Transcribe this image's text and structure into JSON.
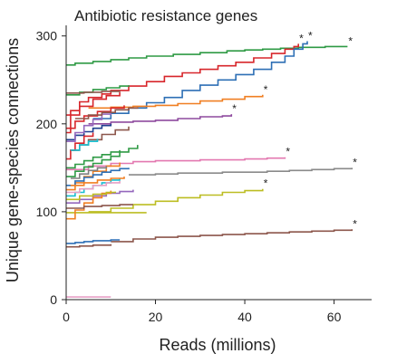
{
  "chart_data": {
    "type": "line",
    "title": "Antibiotic resistance genes",
    "xlabel": "Reads (millions)",
    "ylabel": "Unique gene-species connections",
    "xlim": [
      0,
      68
    ],
    "ylim": [
      0,
      310
    ],
    "xticks": [
      "0",
      "20",
      "40",
      "60"
    ],
    "yticks": [
      "0",
      "100",
      "200",
      "300"
    ],
    "grid": false,
    "legend": "none",
    "asterisk_label": "*",
    "series": [
      {
        "color": "#2e9a44",
        "x": [
          0,
          2,
          6,
          10,
          14,
          18,
          24,
          30,
          36,
          40,
          44,
          48,
          52,
          58,
          63
        ],
        "y": [
          267,
          269,
          271,
          273,
          275,
          277,
          279,
          281,
          283,
          284,
          285,
          286,
          287,
          288,
          288
        ],
        "star": true
      },
      {
        "color": "#d7262b",
        "x": [
          0,
          1,
          3,
          5,
          8,
          10,
          14,
          18,
          22,
          26,
          30,
          34,
          38,
          42,
          46,
          49,
          51,
          52
        ],
        "y": [
          190,
          215,
          225,
          230,
          234,
          238,
          243,
          248,
          254,
          258,
          262,
          266,
          270,
          275,
          280,
          285,
          288,
          291
        ],
        "star": true
      },
      {
        "color": "#2d6fb5",
        "x": [
          6,
          10,
          14,
          18,
          22,
          26,
          30,
          34,
          38,
          42,
          46,
          49,
          51,
          53,
          54
        ],
        "y": [
          206,
          212,
          218,
          224,
          230,
          238,
          244,
          250,
          256,
          262,
          270,
          277,
          285,
          291,
          294
        ],
        "star": true
      },
      {
        "color": "#f07f22",
        "x": [
          5,
          10,
          15,
          20,
          25,
          30,
          35,
          40,
          44
        ],
        "y": [
          218,
          219,
          220,
          221,
          223,
          226,
          228,
          231,
          233
        ],
        "star": true
      },
      {
        "color": "#8e4a9e",
        "x": [
          5,
          10,
          15,
          20,
          25,
          30,
          35,
          37
        ],
        "y": [
          200,
          202,
          203,
          204,
          206,
          208,
          209,
          211
        ],
        "star": true
      },
      {
        "color": "#e378b0",
        "x": [
          0,
          5,
          10,
          15,
          20,
          25,
          30,
          35,
          40,
          45,
          49
        ],
        "y": [
          148,
          152,
          155,
          157,
          158,
          158,
          159,
          159,
          160,
          161,
          162
        ],
        "star": true
      },
      {
        "color": "#8a8a8a",
        "x": [
          14,
          20,
          25,
          30,
          35,
          40,
          45,
          50,
          55,
          60,
          64
        ],
        "y": [
          142,
          143,
          144,
          144,
          145,
          145,
          146,
          147,
          148,
          149,
          150
        ],
        "star": true
      },
      {
        "color": "#bcbd22",
        "x": [
          5,
          10,
          15,
          20,
          25,
          30,
          35,
          40,
          44
        ],
        "y": [
          100,
          104,
          108,
          112,
          116,
          119,
          122,
          124,
          126
        ],
        "star": true
      },
      {
        "color": "#8c564b",
        "x": [
          10,
          15,
          20,
          25,
          30,
          35,
          40,
          45,
          50,
          55,
          60,
          64
        ],
        "y": [
          66,
          69,
          71,
          72,
          73,
          74,
          75,
          76,
          77,
          78,
          79,
          80
        ],
        "star": true
      },
      {
        "color": "#e7a0c5",
        "x": [
          0,
          10
        ],
        "y": [
          3,
          3
        ],
        "star": false
      },
      {
        "color": "#2d6fb5",
        "x": [
          0,
          2,
          4,
          6,
          8,
          10,
          12
        ],
        "y": [
          64,
          65,
          66,
          67,
          67,
          68,
          68
        ],
        "star": false
      },
      {
        "color": "#8c564b",
        "x": [
          0,
          3,
          6,
          10
        ],
        "y": [
          60,
          61,
          62,
          63
        ],
        "star": false
      },
      {
        "color": "#2e9a44",
        "x": [
          0,
          3,
          6,
          9,
          12,
          14
        ],
        "y": [
          233,
          236,
          239,
          241,
          243,
          244
        ],
        "star": false
      },
      {
        "color": "#d7262b",
        "x": [
          0,
          3,
          6,
          9,
          12
        ],
        "y": [
          210,
          220,
          228,
          232,
          236
        ],
        "star": false
      },
      {
        "color": "#d7262b",
        "x": [
          0,
          2,
          4,
          7,
          10,
          13
        ],
        "y": [
          195,
          203,
          209,
          214,
          218,
          221
        ],
        "star": false
      },
      {
        "color": "#8c564b",
        "x": [
          0,
          4,
          8,
          12
        ],
        "y": [
          235,
          236,
          237,
          238
        ],
        "star": false
      },
      {
        "color": "#1f3f8f",
        "x": [
          0,
          2,
          4,
          6,
          8,
          10
        ],
        "y": [
          182,
          187,
          191,
          195,
          198,
          200
        ],
        "star": false
      },
      {
        "color": "#2e9a44",
        "x": [
          0,
          2,
          4,
          6,
          8,
          10,
          12,
          14,
          16
        ],
        "y": [
          140,
          146,
          151,
          155,
          159,
          163,
          168,
          172,
          176
        ],
        "star": false
      },
      {
        "color": "#8c564b",
        "x": [
          1,
          3,
          5,
          8,
          11,
          14
        ],
        "y": [
          170,
          176,
          182,
          188,
          193,
          197
        ],
        "star": false
      },
      {
        "color": "#f07f22",
        "x": [
          0,
          2,
          4,
          6,
          9,
          12
        ],
        "y": [
          125,
          133,
          140,
          146,
          152,
          156
        ],
        "star": false
      },
      {
        "color": "#2d6fb5",
        "x": [
          0,
          2,
          4,
          6,
          8,
          10,
          12,
          14
        ],
        "y": [
          130,
          135,
          139,
          142,
          145,
          147,
          149,
          150
        ],
        "star": false
      },
      {
        "color": "#17becf",
        "x": [
          0,
          2,
          4,
          6,
          8,
          10,
          12
        ],
        "y": [
          118,
          122,
          126,
          130,
          133,
          136,
          138
        ],
        "star": false
      },
      {
        "color": "#9467bd",
        "x": [
          0,
          3,
          6,
          9,
          12,
          15
        ],
        "y": [
          110,
          114,
          118,
          121,
          123,
          125
        ],
        "star": false
      },
      {
        "color": "#bcbd22",
        "x": [
          0,
          3,
          6,
          9,
          12,
          15,
          18
        ],
        "y": [
          99,
          99,
          99,
          99,
          99,
          99,
          99
        ],
        "star": false
      },
      {
        "color": "#f07f22",
        "x": [
          0,
          2,
          4,
          6,
          8,
          10
        ],
        "y": [
          92,
          102,
          110,
          116,
          121,
          124
        ],
        "star": false
      },
      {
        "color": "#e7a0c5",
        "x": [
          0,
          3,
          6,
          9,
          12
        ],
        "y": [
          122,
          126,
          130,
          133,
          135
        ],
        "star": false
      },
      {
        "color": "#8c564b",
        "x": [
          0,
          4,
          8,
          12,
          15
        ],
        "y": [
          104,
          106,
          107,
          108,
          108
        ],
        "star": false
      },
      {
        "color": "#2e9a44",
        "x": [
          0,
          2,
          4,
          6,
          8,
          10,
          12
        ],
        "y": [
          150,
          154,
          158,
          162,
          165,
          168,
          170
        ],
        "star": false
      },
      {
        "color": "#d7262b",
        "x": [
          0,
          1,
          2,
          4,
          6
        ],
        "y": [
          160,
          170,
          178,
          186,
          190
        ],
        "star": false
      },
      {
        "color": "#9467bd",
        "x": [
          0,
          2,
          4,
          6,
          8,
          10
        ],
        "y": [
          180,
          190,
          198,
          205,
          211,
          214
        ],
        "star": false
      },
      {
        "color": "#7f7f7f",
        "x": [
          1,
          3,
          5,
          7,
          9
        ],
        "y": [
          138,
          143,
          147,
          150,
          152
        ],
        "star": false
      },
      {
        "color": "#f07f22",
        "x": [
          1,
          4,
          7,
          10,
          13
        ],
        "y": [
          130,
          133,
          136,
          138,
          140
        ],
        "star": false
      },
      {
        "color": "#8c564b",
        "x": [
          2,
          5,
          8,
          11,
          14,
          16
        ],
        "y": [
          206,
          210,
          213,
          216,
          218,
          219
        ],
        "star": false
      },
      {
        "color": "#bcbd22",
        "x": [
          0,
          3,
          6,
          9,
          11
        ],
        "y": [
          114,
          118,
          120,
          122,
          123
        ],
        "star": false
      },
      {
        "color": "#17becf",
        "x": [
          1,
          3,
          5,
          7
        ],
        "y": [
          170,
          176,
          180,
          183
        ],
        "star": false
      }
    ]
  }
}
